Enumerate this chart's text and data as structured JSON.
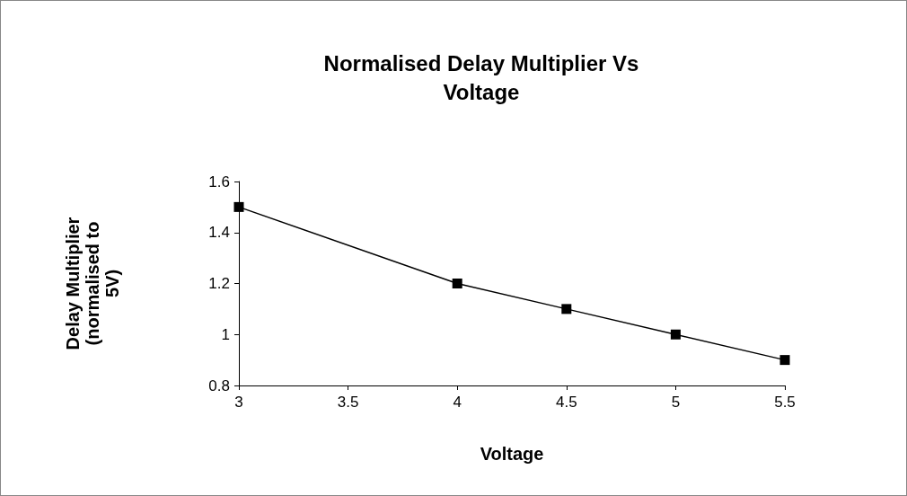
{
  "chart_data": {
    "type": "line",
    "title": "Normalised Delay Multiplier Vs\nVoltage",
    "xlabel": "Voltage",
    "ylabel": "Delay Multiplier\n(normalised to\n5V)",
    "x": [
      3,
      4,
      4.5,
      5,
      5.5
    ],
    "series": [
      {
        "color": "#000000",
        "values": [
          1.5,
          1.2,
          1.1,
          1,
          0.9
        ]
      }
    ],
    "xlim": [
      3,
      5.5
    ],
    "xticks": [
      3,
      3.5,
      4,
      4.5,
      5,
      5.5
    ],
    "ylim": [
      0.8,
      1.6
    ],
    "yticks": [
      0.8,
      1,
      1.2,
      1.4,
      1.6
    ],
    "grid": false,
    "marker": "square",
    "line_style": "solid"
  }
}
